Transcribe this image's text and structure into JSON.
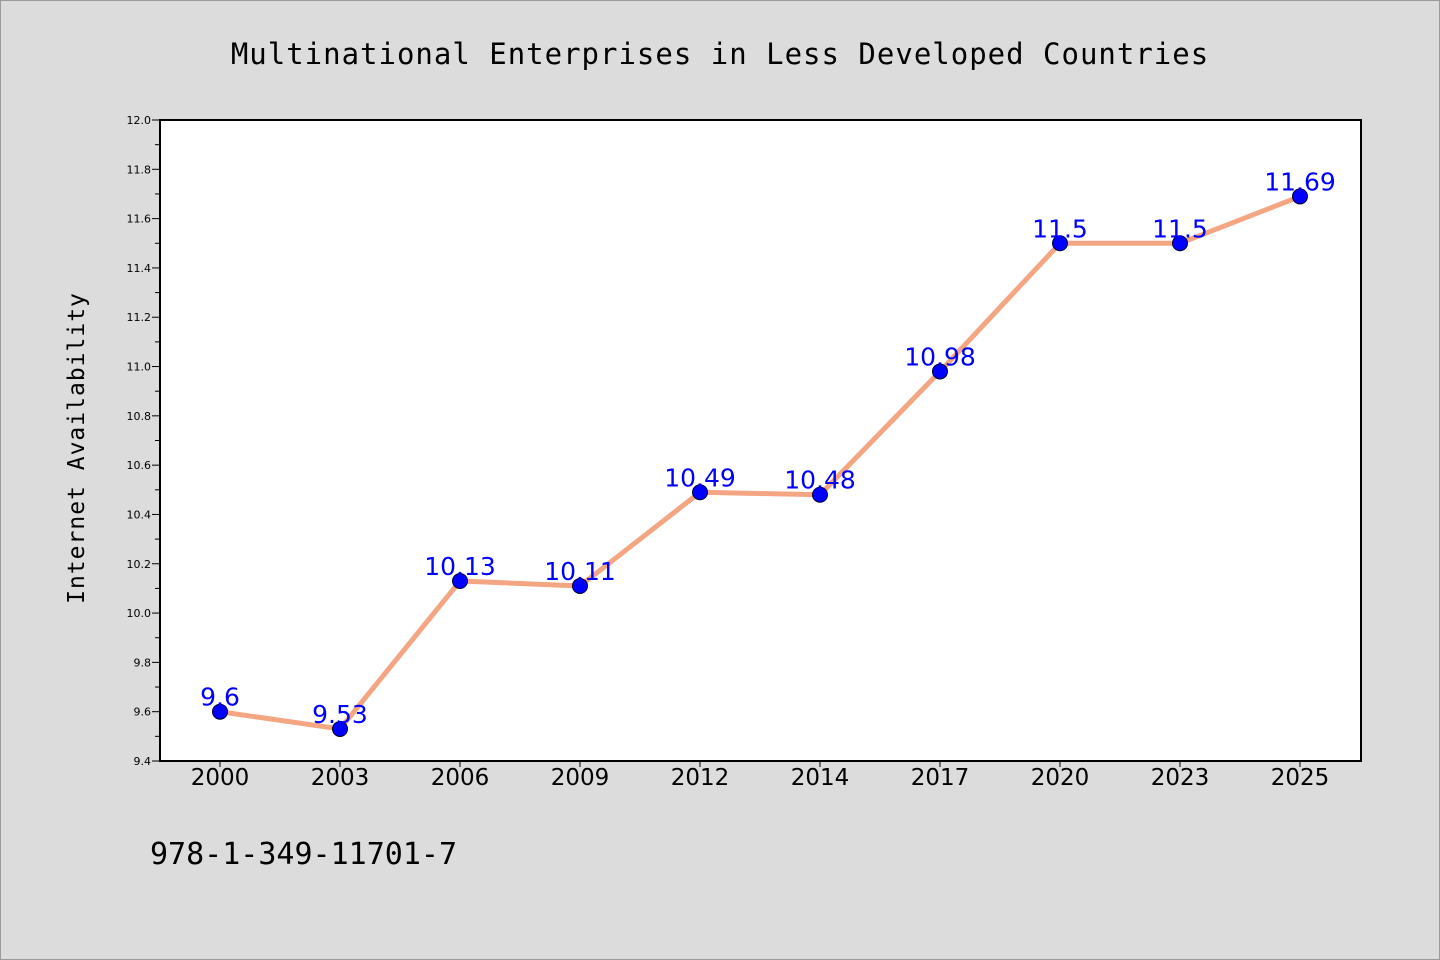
{
  "chart_data": {
    "type": "line",
    "title": "Multinational Enterprises in Less Developed Countries",
    "xlabel": "",
    "ylabel": "Internet Availability",
    "categories": [
      "2000",
      "2003",
      "2006",
      "2009",
      "2012",
      "2014",
      "2017",
      "2020",
      "2023",
      "2025"
    ],
    "series": [
      {
        "values": [
          9.6,
          9.53,
          10.13,
          10.11,
          10.49,
          10.48,
          10.98,
          11.5,
          11.5,
          11.69
        ],
        "data_labels": [
          "9.6",
          "9.53",
          "10.13",
          "10.11",
          "10.49",
          "10.48",
          "10.98",
          "11.5",
          "11.5",
          "11.69"
        ]
      }
    ],
    "ylim": [
      9.4,
      12.0
    ],
    "ytick_labels": [
      "9.4",
      "9.6",
      "9.8",
      "10.0",
      "10.2",
      "10.4",
      "10.6",
      "10.8",
      "11.0",
      "11.2",
      "11.4",
      "11.6",
      "11.8",
      "12.0"
    ],
    "grid": false,
    "legend": "none",
    "colors": {
      "line": "#f4a582",
      "marker": "#0000ff",
      "data_label": "#0000ff",
      "background": "#dcdcdc",
      "plot_background": "#ffffff"
    }
  },
  "footer": {
    "isbn": "978-1-349-11701-7"
  }
}
